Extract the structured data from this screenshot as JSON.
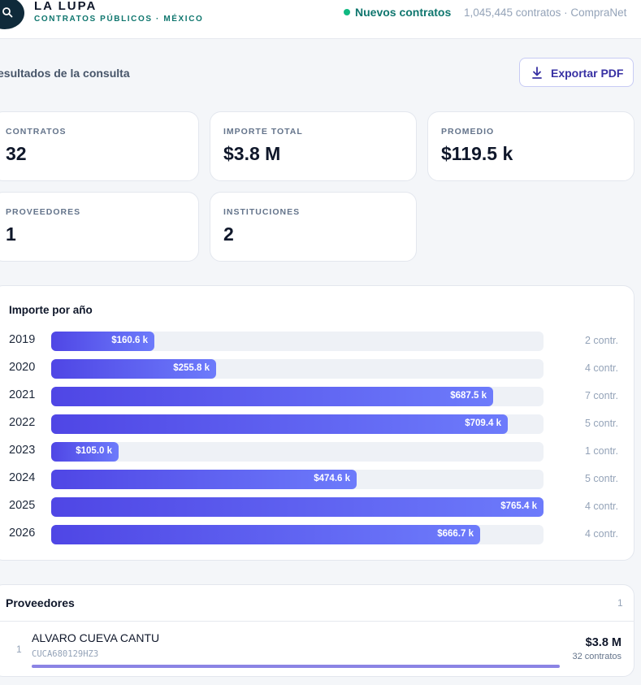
{
  "brand": {
    "title": "LA LUPA",
    "subtitle": "CONTRATOS PÚBLICOS · MÉXICO",
    "live_label": "Nuevos contratos",
    "live_meta": "1,045,445 contratos · CompraNet"
  },
  "results": {
    "title": "esultados de la consulta",
    "export_label": "Exportar PDF"
  },
  "stats": [
    {
      "label": "CONTRATOS",
      "value": "32"
    },
    {
      "label": "IMPORTE TOTAL",
      "value": "$3.8 M"
    },
    {
      "label": "PROMEDIO",
      "value": "$119.5 k"
    },
    {
      "label": "PROVEEDORES",
      "value": "1"
    },
    {
      "label": "INSTITUCIONES",
      "value": "2"
    }
  ],
  "chart_data": {
    "type": "bar",
    "title": "Importe por año",
    "categories": [
      "2019",
      "2020",
      "2021",
      "2022",
      "2023",
      "2024",
      "2025",
      "2026"
    ],
    "values": [
      160.6,
      255.8,
      687.5,
      709.4,
      105.0,
      474.6,
      765.4,
      666.7
    ],
    "value_labels": [
      "$160.6 k",
      "$255.8 k",
      "$687.5 k",
      "$709.4 k",
      "$105.0 k",
      "$474.6 k",
      "$765.4 k",
      "$666.7 k"
    ],
    "counts": [
      "2 contr.",
      "4 contr.",
      "7 contr.",
      "5 contr.",
      "1 contr.",
      "5 contr.",
      "4 contr.",
      "4 contr."
    ],
    "orientation": "horizontal",
    "xlim": [
      0,
      765.4
    ]
  },
  "suppliers": {
    "title": "Proveedores",
    "count": "1",
    "items": [
      {
        "rank": "1",
        "name": "ALVARO CUEVA CANTU",
        "rfc": "CUCA680129HZ3",
        "amount": "$3.8 M",
        "contracts": "32 contratos",
        "share": 1.0
      }
    ]
  },
  "colors": {
    "accent": "#4f46e5",
    "accent_light": "#6d7bfb",
    "live": "#10b981",
    "brand_dark": "#0f2a3a"
  }
}
